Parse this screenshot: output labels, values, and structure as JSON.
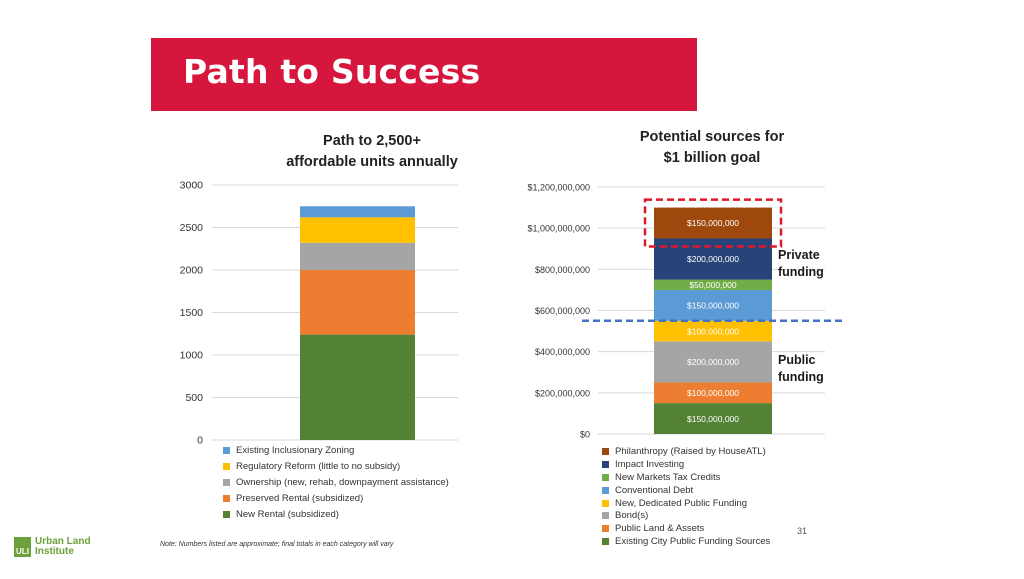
{
  "banner": {
    "title": "Path to Success"
  },
  "note": "Note: Numbers listed are approximate; final totals in each category will vary",
  "page_number": "31",
  "logo": {
    "mark": "ULI",
    "line1": "Urban Land",
    "line2": "Institute",
    "color": "#6ba03a"
  },
  "colors": {
    "banner": "#d6163c",
    "grid": "#d9d9d9",
    "public_divider": "#4472c4",
    "highlight_box": "#e0162b"
  },
  "annotations": {
    "private_funding": [
      "Private",
      "funding"
    ],
    "public_funding": [
      "Public",
      "funding"
    ]
  },
  "chart_data": [
    {
      "type": "bar",
      "stacked": true,
      "title": [
        "Path to 2,500+",
        "affordable units annually"
      ],
      "ylim": [
        0,
        3000
      ],
      "yticks": [
        "0",
        "500",
        "1000",
        "1500",
        "2000",
        "2500",
        "3000"
      ],
      "ytick_values": [
        0,
        500,
        1000,
        1500,
        2000,
        2500,
        3000
      ],
      "grid": true,
      "legend_position": "bottom",
      "series": [
        {
          "name": "New Rental (subsidized)",
          "value": 1240,
          "color": "#548235"
        },
        {
          "name": "Preserved Rental (subsidized)",
          "value": 760,
          "color": "#ed7d31"
        },
        {
          "name": "Ownership (new, rehab, downpayment assistance)",
          "value": 320,
          "color": "#a5a5a5"
        },
        {
          "name": "Regulatory Reform (little to no subsidy)",
          "value": 300,
          "color": "#ffc000"
        },
        {
          "name": "Existing Inclusionary Zoning",
          "value": 130,
          "color": "#5b9bd5"
        }
      ]
    },
    {
      "type": "bar",
      "stacked": true,
      "title": [
        "Potential sources for",
        "$1 billion goal"
      ],
      "ylim": [
        0,
        1200000000
      ],
      "yticks": [
        "$0",
        "$200,000,000",
        "$400,000,000",
        "$600,000,000",
        "$800,000,000",
        "$1,000,000,000",
        "$1,200,000,000"
      ],
      "ytick_values": [
        0,
        200000000,
        400000000,
        600000000,
        800000000,
        1000000000,
        1200000000
      ],
      "grid": true,
      "legend_position": "bottom",
      "public_private_split": 550000000,
      "series": [
        {
          "name": "Existing City Public Funding Sources",
          "value": 150000000,
          "label": "$150,000,000",
          "color": "#548235"
        },
        {
          "name": "Public Land & Assets",
          "value": 100000000,
          "label": "$100,000,000",
          "color": "#ed7d31"
        },
        {
          "name": "Bond(s)",
          "value": 200000000,
          "label": "$200,000,000",
          "color": "#a5a5a5"
        },
        {
          "name": "New, Dedicated Public Funding",
          "value": 100000000,
          "label": "$100,000,000",
          "color": "#ffc000"
        },
        {
          "name": "Conventional Debt",
          "value": 150000000,
          "label": "$150,000,000",
          "color": "#5b9bd5"
        },
        {
          "name": "New Markets Tax Credits",
          "value": 50000000,
          "label": "$50,000,000",
          "color": "#70ad47"
        },
        {
          "name": "Impact Investing",
          "value": 200000000,
          "label": "$200,000,000",
          "color": "#264478"
        },
        {
          "name": "Philanthropy (Raised by HouseATL)",
          "value": 150000000,
          "label": "$150,000,000",
          "color": "#9e480e",
          "highlighted": true
        }
      ]
    }
  ]
}
